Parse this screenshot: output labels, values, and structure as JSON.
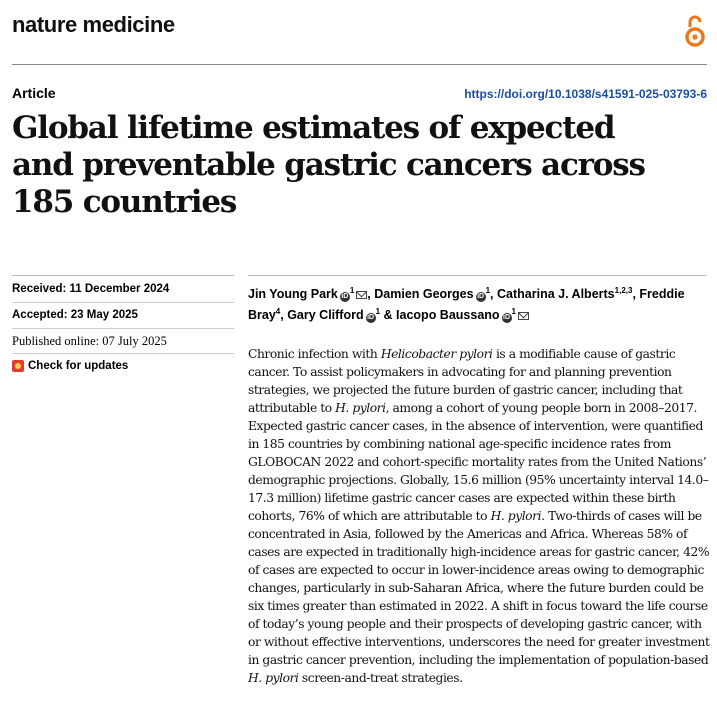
{
  "journal": "nature medicine",
  "article_type": "Article",
  "doi": "https://doi.org/10.1038/s41591-025-03793-6",
  "title_lines": [
    "Global lifetime estimates of expected",
    "and preventable gastric cancers across",
    "185 countries"
  ],
  "received": "Received: 11 December 2024",
  "accepted": "Accepted: 23 May 2025",
  "published": "Published online: 07 July 2025",
  "check_updates": "Check for updates",
  "authors": [
    {
      "name": "Jin Young Park",
      "sup": "1",
      "orcid": true,
      "email": true,
      "sep": ", "
    },
    {
      "name": "Damien Georges",
      "sup": "1",
      "orcid": true,
      "email": false,
      "sep": ", "
    },
    {
      "name": "Catharina J. Alberts",
      "sup": "1,2,3",
      "orcid": false,
      "email": false,
      "sep": ", "
    },
    {
      "name": "Freddie Bray",
      "sup": "4",
      "orcid": false,
      "email": false,
      "sep": ", "
    },
    {
      "name": "Gary Clifford",
      "sup": "1",
      "orcid": true,
      "email": false,
      "sep": " & "
    },
    {
      "name": "Iacopo Baussano",
      "sup": "1",
      "orcid": true,
      "email": true,
      "sep": ""
    }
  ],
  "abstract": [
    {
      "t": "Chronic infection with "
    },
    {
      "t": "Helicobacter pylori",
      "i": true
    },
    {
      "t": " is a modifiable cause of gastric cancer. To assist policymakers in advocating for and planning prevention strategies, we projected the future burden of gastric cancer, including that attributable to "
    },
    {
      "t": "H. pylori",
      "i": true
    },
    {
      "t": ", among a cohort of young people born in 2008–2017. Expected gastric cancer cases, in the absence of intervention, were quantified in 185 countries by combining national age-specific incidence rates from GLOBOCAN 2022 and cohort-specific mortality rates from the United Nations’ demographic projections. Globally, 15.6 million (95% uncertainty interval 14.0–17.3 million) lifetime gastric cancer cases are expected within these birth cohorts, 76% of which are attributable to "
    },
    {
      "t": "H. pylori",
      "i": true
    },
    {
      "t": ". Two-thirds of cases will be concentrated in Asia, followed by the Americas and Africa. Whereas 58% of cases are expected in traditionally high-incidence areas for gastric cancer, 42% of cases are expected to occur in lower-incidence areas owing to demographic changes, particularly in sub-Saharan Africa, where the future burden could be six times greater than estimated in 2022. A shift in focus toward the life course of today’s young people and their prospects of developing gastric cancer, with or without effective interventions, underscores the need for greater investment in gastric cancer prevention, including the implementation of population-based "
    },
    {
      "t": "H. pylori",
      "i": true
    },
    {
      "t": " screen-and-treat strategies."
    }
  ]
}
